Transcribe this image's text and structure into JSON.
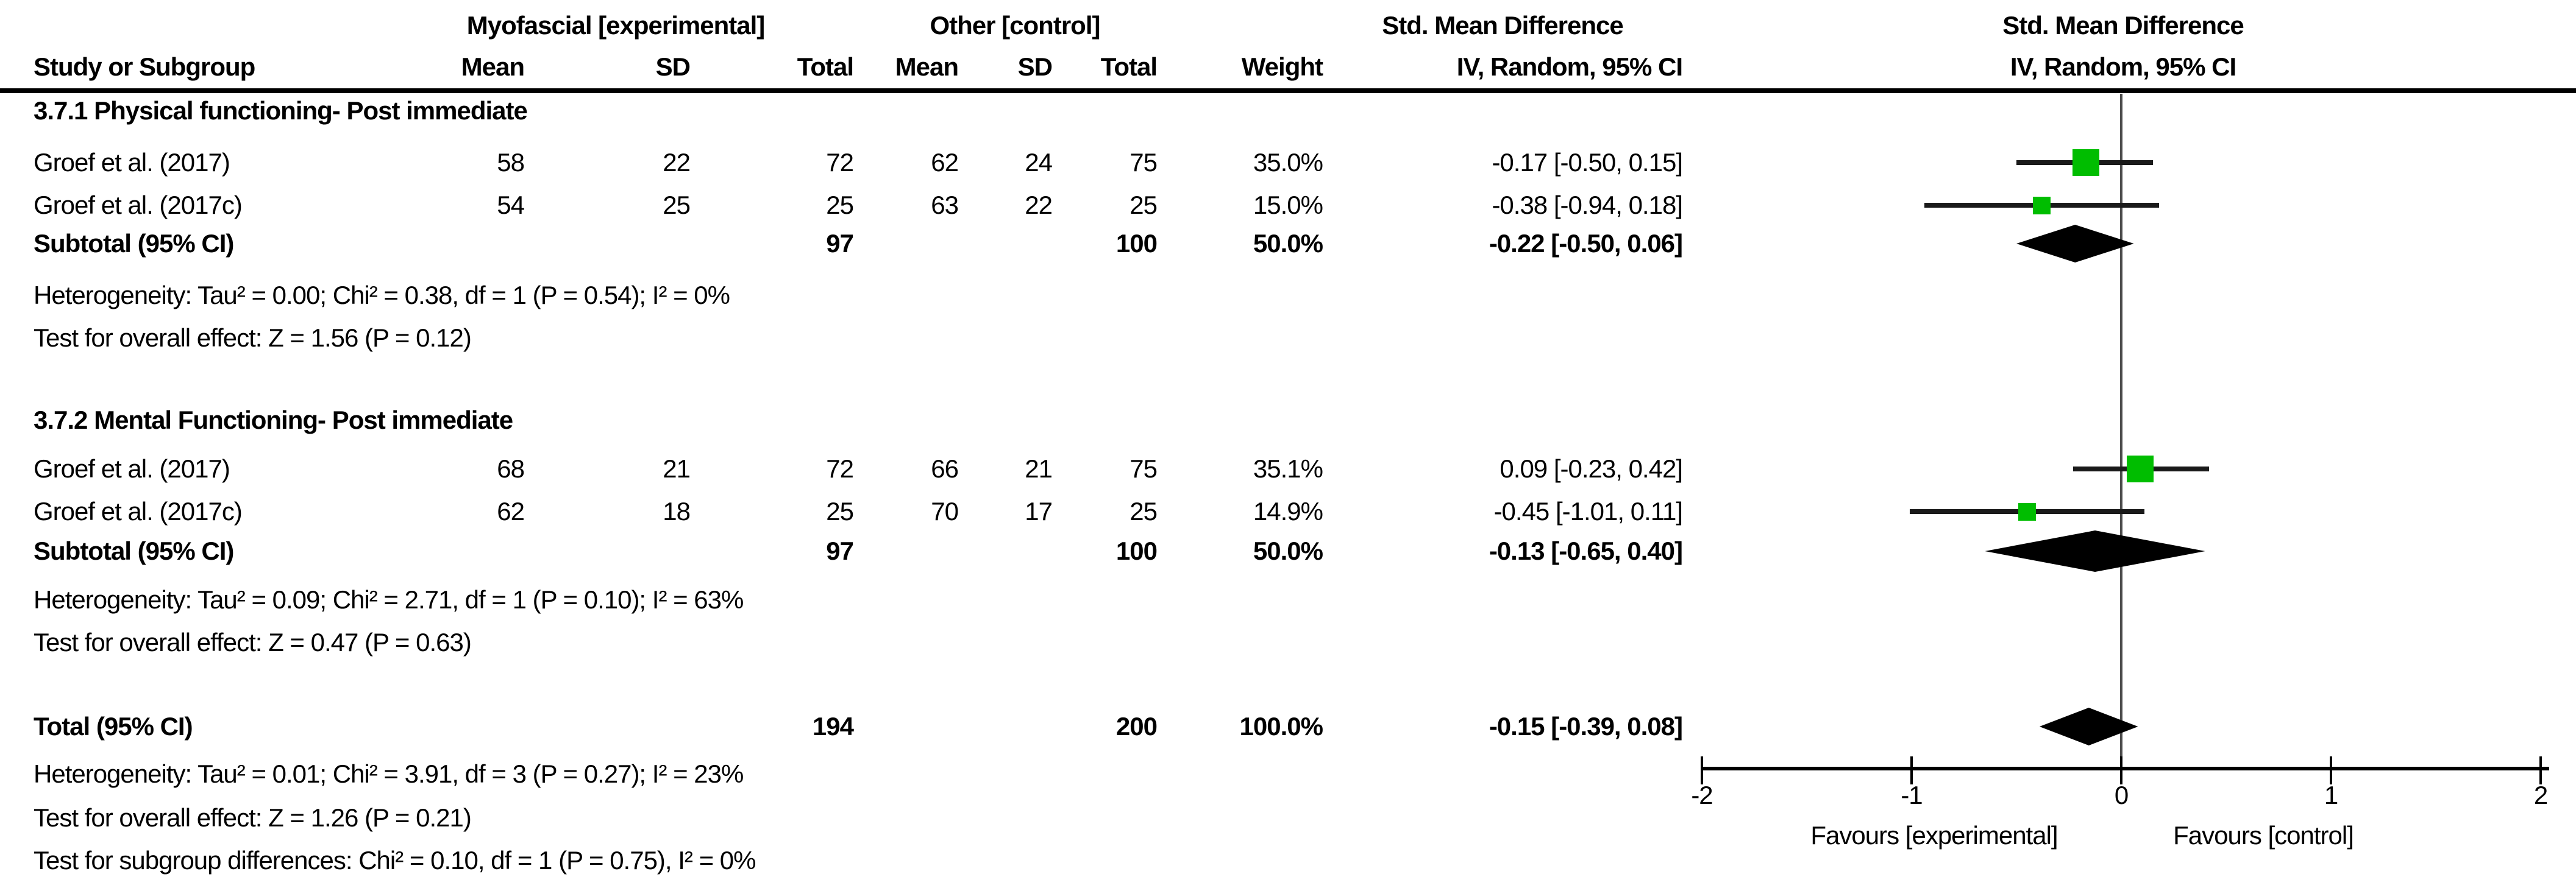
{
  "colors": {
    "square_green": "#00bd00",
    "ci_black": "#1a1a1a",
    "zero_line_gray": "#4d4d4d",
    "text": "#000000"
  },
  "table": {
    "group_headers": {
      "experimental": "Myofascial [experimental]",
      "control": "Other [control]",
      "smd": "Std. Mean Difference"
    },
    "col_headers": {
      "study": "Study or Subgroup",
      "mean": "Mean",
      "sd": "SD",
      "total": "Total",
      "weight": "Weight",
      "ci": "IV, Random, 95% CI"
    },
    "sections": [
      {
        "title": "3.7.1 Physical functioning- Post immediate",
        "rows": [
          {
            "study": "Groef et al. (2017)",
            "mean1": "58",
            "sd1": "22",
            "total1": "72",
            "mean2": "62",
            "sd2": "24",
            "total2": "75",
            "weight": "35.0%",
            "ci": "-0.17 [-0.50, 0.15]"
          },
          {
            "study": "Groef et al. (2017c)",
            "mean1": "54",
            "sd1": "25",
            "total1": "25",
            "mean2": "63",
            "sd2": "22",
            "total2": "25",
            "weight": "15.0%",
            "ci": "-0.38 [-0.94, 0.18]"
          }
        ],
        "subtotal": {
          "label": "Subtotal (95% CI)",
          "total1": "97",
          "total2": "100",
          "weight": "50.0%",
          "ci": "-0.22 [-0.50, 0.06]"
        },
        "heterogeneity": "Heterogeneity: Tau² = 0.00; Chi² = 0.38, df = 1 (P = 0.54); I² = 0%",
        "overall": "Test for overall effect: Z = 1.56 (P = 0.12)"
      },
      {
        "title": "3.7.2 Mental Functioning- Post immediate",
        "rows": [
          {
            "study": "Groef et al. (2017)",
            "mean1": "68",
            "sd1": "21",
            "total1": "72",
            "mean2": "66",
            "sd2": "21",
            "total2": "75",
            "weight": "35.1%",
            "ci": "0.09 [-0.23, 0.42]"
          },
          {
            "study": "Groef et al. (2017c)",
            "mean1": "62",
            "sd1": "18",
            "total1": "25",
            "mean2": "70",
            "sd2": "17",
            "total2": "25",
            "weight": "14.9%",
            "ci": "-0.45 [-1.01, 0.11]"
          }
        ],
        "subtotal": {
          "label": "Subtotal (95% CI)",
          "total1": "97",
          "total2": "100",
          "weight": "50.0%",
          "ci": "-0.13 [-0.65, 0.40]"
        },
        "heterogeneity": "Heterogeneity: Tau² = 0.09; Chi² = 2.71, df = 1 (P = 0.10); I² = 63%",
        "overall": "Test for overall effect: Z = 0.47 (P = 0.63)"
      }
    ],
    "total": {
      "label": "Total (95% CI)",
      "total1": "194",
      "total2": "200",
      "weight": "100.0%",
      "ci": "-0.15 [-0.39, 0.08]",
      "heterogeneity": "Heterogeneity: Tau² = 0.01; Chi² = 3.91, df = 3 (P = 0.27); I² = 23%",
      "overall": "Test for overall effect: Z = 1.26 (P = 0.21)",
      "subgroup": "Test for subgroup differences: Chi² = 0.10, df = 1 (P = 0.75), I² = 0%"
    }
  },
  "chart_data": {
    "type": "forest",
    "title": "Std. Mean Difference",
    "effect_measure": "IV, Random, 95% CI",
    "xlim": [
      -2,
      2
    ],
    "x_ticks": [
      -2,
      -1,
      0,
      1,
      2
    ],
    "x_axis_labels": {
      "left": "Favours [experimental]",
      "right": "Favours [control]"
    },
    "groups": [
      {
        "title": "3.7.1 Physical functioning- Post immediate",
        "studies": [
          {
            "label": "Groef et al. (2017)",
            "est": -0.17,
            "lo": -0.5,
            "hi": 0.15,
            "weight_pct": 35.0
          },
          {
            "label": "Groef et al. (2017c)",
            "est": -0.38,
            "lo": -0.94,
            "hi": 0.18,
            "weight_pct": 15.0
          }
        ],
        "subtotal": {
          "est": -0.22,
          "lo": -0.5,
          "hi": 0.06,
          "weight_pct": 50.0
        }
      },
      {
        "title": "3.7.2 Mental Functioning- Post immediate",
        "studies": [
          {
            "label": "Groef et al. (2017)",
            "est": 0.09,
            "lo": -0.23,
            "hi": 0.42,
            "weight_pct": 35.1
          },
          {
            "label": "Groef et al. (2017c)",
            "est": -0.45,
            "lo": -1.01,
            "hi": 0.11,
            "weight_pct": 14.9
          }
        ],
        "subtotal": {
          "est": -0.13,
          "lo": -0.65,
          "hi": 0.4,
          "weight_pct": 50.0
        }
      }
    ],
    "total": {
      "est": -0.15,
      "lo": -0.39,
      "hi": 0.08,
      "weight_pct": 100.0
    }
  }
}
